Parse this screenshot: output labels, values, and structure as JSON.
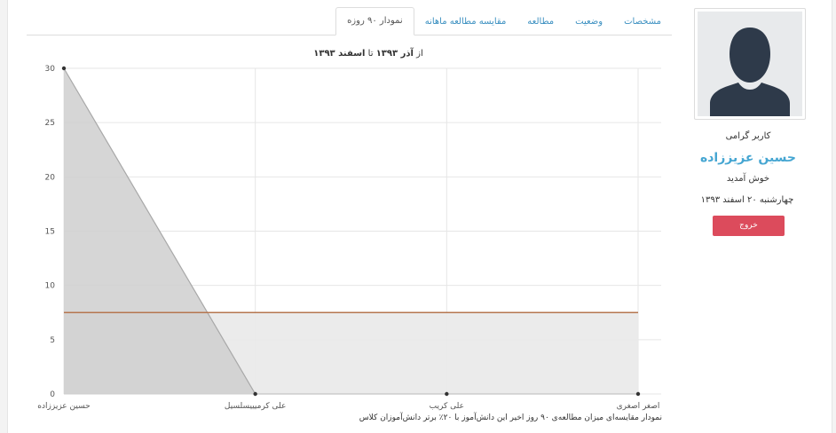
{
  "tabs": [
    {
      "label": "مشخصات",
      "active": false
    },
    {
      "label": "وضعیت",
      "active": false
    },
    {
      "label": "مطالعه",
      "active": false
    },
    {
      "label": "مقایسه مطالعه ماهانه",
      "active": false
    },
    {
      "label": "نمودار ۹۰ روزه",
      "active": true
    }
  ],
  "sidebar": {
    "greeting": "کاربر گرامی",
    "user_name": "حسین عزیززاده",
    "welcome": "خوش آمدید",
    "date": "چهارشنبه ۲۰ اسفند ۱۳۹۳",
    "logout_label": "خروج"
  },
  "chart_header": {
    "from_word": "از",
    "from_date": "آذر ۱۳۹۳",
    "to_word": "تا",
    "to_date": "اسفند ۱۳۹۳"
  },
  "chart_data": {
    "type": "area",
    "categories": [
      "حسین عزیززاده",
      "علی کرمیییسلسیل",
      "علی کریب",
      "اصغر اصغری"
    ],
    "series": [
      {
        "values": [
          30,
          0,
          0,
          0
        ],
        "color": "#a8a8a8",
        "fill": "#cfcfcf"
      }
    ],
    "reference_line": {
      "value": 7.5,
      "color": "#b5764f"
    },
    "ylim": [
      0,
      30
    ],
    "yticks": [
      0,
      5,
      10,
      15,
      20,
      25,
      30
    ],
    "grid": true
  },
  "caption": "نمودار مقایسه‌ای میزان مطالعه‌ی ۹۰ روز اخیر این دانش‌آموز با ۲۰٪ برتر دانش‌آموزان کلاس"
}
